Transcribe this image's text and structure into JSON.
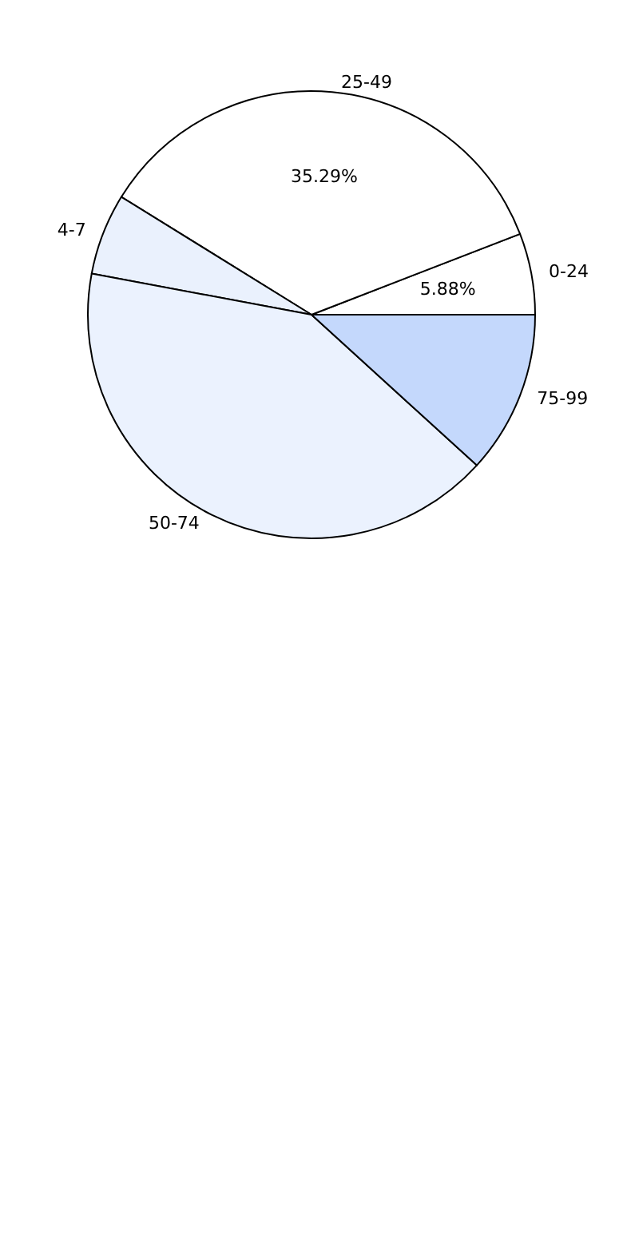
{
  "chart_data": {
    "type": "pie",
    "categories": [
      "0-24",
      "25-49",
      "4-7",
      "50-74",
      "75-99"
    ],
    "values": [
      5.88,
      35.29,
      5.88,
      41.18,
      11.76
    ],
    "value_labels": [
      "5.88%",
      "35.29%",
      null,
      null,
      null
    ],
    "colors": [
      "#ffffff",
      "#ffffff",
      "#eaf1fd",
      "#ebf2fe",
      "#c4d8fc"
    ],
    "legend": false
  }
}
